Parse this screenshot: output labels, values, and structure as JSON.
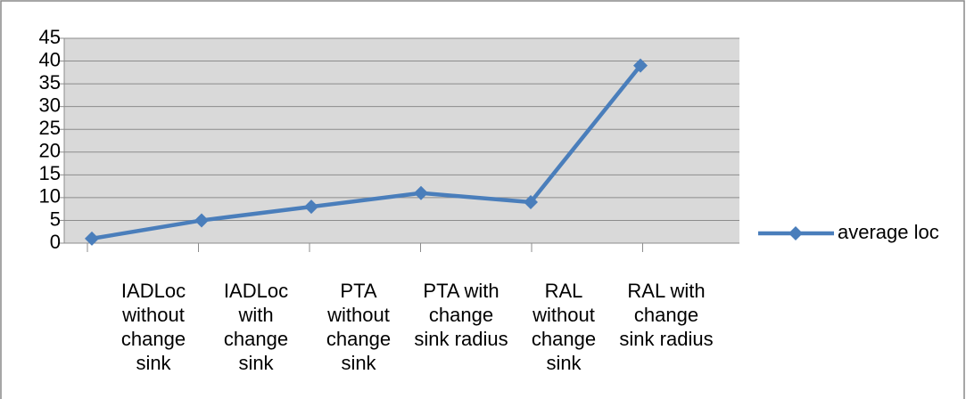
{
  "chart_data": {
    "type": "line",
    "categories": [
      "IADLoc without change sink",
      "IADLoc with change sink",
      "PTA without change sink",
      "PTA with change sink radius",
      "RAL without change sink",
      "RAL with change sink radius"
    ],
    "series": [
      {
        "name": "average loc",
        "color": "#4a7ebb",
        "values": [
          1,
          5,
          8,
          11,
          9,
          39
        ]
      }
    ],
    "ylim": [
      0,
      45
    ],
    "yticks": [
      0,
      5,
      10,
      15,
      20,
      25,
      30,
      35,
      40,
      45
    ],
    "grid": true,
    "legend": "right"
  }
}
